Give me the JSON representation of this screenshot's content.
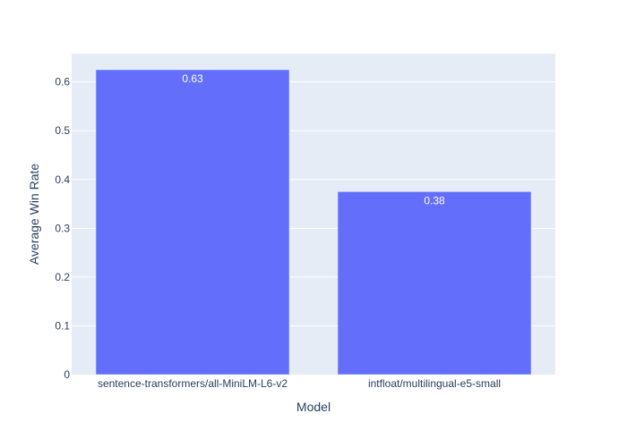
{
  "chart_data": {
    "type": "bar",
    "categories": [
      "sentence-transformers/all-MiniLM-L6-v2",
      "intfloat/multilingual-e5-small"
    ],
    "values": [
      0.625,
      0.375
    ],
    "data_labels": [
      "0.63",
      "0.38"
    ],
    "xlabel": "Model",
    "ylabel": "Average Win Rate",
    "ylim": [
      0,
      0.658
    ],
    "yticks": [
      0,
      0.1,
      0.2,
      0.3,
      0.4,
      0.5,
      0.6
    ],
    "ytick_labels": [
      "0",
      "0.1",
      "0.2",
      "0.3",
      "0.4",
      "0.5",
      "0.6"
    ],
    "grid": true,
    "legend": "none",
    "colors": {
      "bar": "#636efa",
      "plot_bg": "#e5ecf6",
      "grid": "#ffffff",
      "text": "#2a3f5f"
    }
  }
}
